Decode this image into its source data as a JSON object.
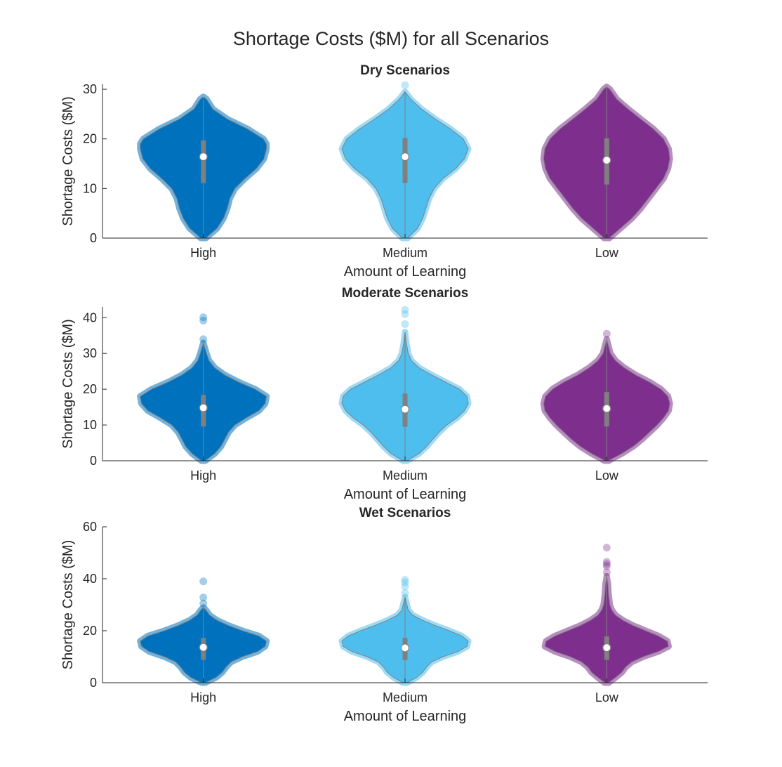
{
  "figure": {
    "title": "Shortage Costs ($M) for all Scenarios"
  },
  "colors": {
    "High": "#0072bd",
    "Medium": "#4dbeee",
    "Low": "#7e2f8e",
    "axis": "#262626",
    "inner": "#808080"
  },
  "chart_data": [
    {
      "type": "violin",
      "title": "Dry Scenarios",
      "xlabel": "Amount of Learning",
      "ylabel": "Shortage Costs ($M)",
      "ylim": [
        0,
        31
      ],
      "yticks": [
        0,
        10,
        20,
        30
      ],
      "categories": [
        "High",
        "Medium",
        "Low"
      ],
      "groups": [
        {
          "name": "High",
          "median": 16.4,
          "q1": 11.1,
          "q3": 19.7,
          "min": 0,
          "max": 28.5,
          "profile": [
            [
              0,
              0.04
            ],
            [
              2,
              0.22
            ],
            [
              4,
              0.32
            ],
            [
              6,
              0.38
            ],
            [
              8,
              0.42
            ],
            [
              10,
              0.5
            ],
            [
              12,
              0.66
            ],
            [
              14,
              0.84
            ],
            [
              16,
              0.96
            ],
            [
              18,
              1.0
            ],
            [
              19,
              1.0
            ],
            [
              20,
              0.95
            ],
            [
              22,
              0.7
            ],
            [
              24,
              0.38
            ],
            [
              26,
              0.15
            ],
            [
              28,
              0.05
            ],
            [
              28.5,
              0
            ]
          ],
          "outliers": []
        },
        {
          "name": "Medium",
          "median": 16.4,
          "q1": 11.1,
          "q3": 20.2,
          "min": 0,
          "max": 29.5,
          "profile": [
            [
              0,
              0.04
            ],
            [
              2,
              0.2
            ],
            [
              4,
              0.28
            ],
            [
              6,
              0.33
            ],
            [
              8,
              0.38
            ],
            [
              10,
              0.46
            ],
            [
              12,
              0.6
            ],
            [
              14,
              0.8
            ],
            [
              16,
              0.94
            ],
            [
              18,
              1.0
            ],
            [
              20,
              0.92
            ],
            [
              22,
              0.72
            ],
            [
              24,
              0.48
            ],
            [
              26,
              0.26
            ],
            [
              28,
              0.09
            ],
            [
              29.5,
              0
            ]
          ],
          "outliers": [
            30.8
          ]
        },
        {
          "name": "Low",
          "median": 15.7,
          "q1": 10.8,
          "q3": 20.1,
          "min": 0,
          "max": 30.5,
          "profile": [
            [
              0,
              0.04
            ],
            [
              2,
              0.22
            ],
            [
              4,
              0.4
            ],
            [
              6,
              0.54
            ],
            [
              8,
              0.66
            ],
            [
              10,
              0.78
            ],
            [
              12,
              0.9
            ],
            [
              14,
              0.97
            ],
            [
              16,
              1.0
            ],
            [
              18,
              0.98
            ],
            [
              20,
              0.9
            ],
            [
              22,
              0.74
            ],
            [
              24,
              0.54
            ],
            [
              26,
              0.34
            ],
            [
              28,
              0.16
            ],
            [
              30,
              0.05
            ],
            [
              30.5,
              0
            ]
          ],
          "outliers": []
        }
      ]
    },
    {
      "type": "violin",
      "title": "Moderate Scenarios",
      "xlabel": "Amount of Learning",
      "ylabel": "Shortage Costs ($M)",
      "ylim": [
        0,
        43
      ],
      "yticks": [
        0,
        10,
        20,
        30,
        40
      ],
      "categories": [
        "High",
        "Medium",
        "Low"
      ],
      "groups": [
        {
          "name": "High",
          "median": 14.8,
          "q1": 9.6,
          "q3": 18.4,
          "min": 0,
          "max": 33,
          "profile": [
            [
              0,
              0.03
            ],
            [
              2,
              0.18
            ],
            [
              4,
              0.28
            ],
            [
              6,
              0.34
            ],
            [
              8,
              0.4
            ],
            [
              10,
              0.5
            ],
            [
              12,
              0.68
            ],
            [
              14,
              0.88
            ],
            [
              16,
              0.98
            ],
            [
              18,
              1.0
            ],
            [
              20,
              0.82
            ],
            [
              22,
              0.56
            ],
            [
              24,
              0.34
            ],
            [
              26,
              0.18
            ],
            [
              28,
              0.09
            ],
            [
              30,
              0.05
            ],
            [
              33,
              0
            ]
          ],
          "outliers": [
            34,
            39.2,
            40.1
          ]
        },
        {
          "name": "Medium",
          "median": 14.4,
          "q1": 9.5,
          "q3": 18.8,
          "min": 0,
          "max": 36,
          "profile": [
            [
              0,
              0.03
            ],
            [
              2,
              0.22
            ],
            [
              4,
              0.34
            ],
            [
              6,
              0.44
            ],
            [
              8,
              0.54
            ],
            [
              10,
              0.66
            ],
            [
              12,
              0.82
            ],
            [
              14,
              0.94
            ],
            [
              16,
              1.0
            ],
            [
              18,
              0.98
            ],
            [
              20,
              0.86
            ],
            [
              22,
              0.64
            ],
            [
              24,
              0.42
            ],
            [
              26,
              0.22
            ],
            [
              28,
              0.1
            ],
            [
              30,
              0.05
            ],
            [
              33,
              0.02
            ],
            [
              36,
              0
            ]
          ],
          "outliers": [
            38.2,
            41,
            42.2
          ]
        },
        {
          "name": "Low",
          "median": 14.6,
          "q1": 9.6,
          "q3": 19.2,
          "min": 0,
          "max": 34,
          "profile": [
            [
              0,
              0.03
            ],
            [
              2,
              0.24
            ],
            [
              4,
              0.42
            ],
            [
              6,
              0.56
            ],
            [
              8,
              0.68
            ],
            [
              10,
              0.8
            ],
            [
              12,
              0.9
            ],
            [
              14,
              0.98
            ],
            [
              16,
              1.0
            ],
            [
              18,
              0.97
            ],
            [
              20,
              0.86
            ],
            [
              22,
              0.68
            ],
            [
              24,
              0.46
            ],
            [
              26,
              0.28
            ],
            [
              28,
              0.14
            ],
            [
              30,
              0.06
            ],
            [
              32,
              0.03
            ],
            [
              34,
              0
            ]
          ],
          "outliers": [
            35.5
          ]
        }
      ]
    },
    {
      "type": "violin",
      "title": "Wet Scenarios",
      "xlabel": "Amount of Learning",
      "ylabel": "Shortage Costs ($M)",
      "ylim": [
        0,
        60
      ],
      "yticks": [
        0,
        20,
        40,
        60
      ],
      "categories": [
        "High",
        "Medium",
        "Low"
      ],
      "groups": [
        {
          "name": "High",
          "median": 13.6,
          "q1": 8.8,
          "q3": 17.2,
          "min": 0,
          "max": 29,
          "profile": [
            [
              0,
              0.03
            ],
            [
              2,
              0.2
            ],
            [
              4,
              0.3
            ],
            [
              6,
              0.36
            ],
            [
              8,
              0.44
            ],
            [
              10,
              0.62
            ],
            [
              12,
              0.86
            ],
            [
              14,
              0.98
            ],
            [
              16,
              1.0
            ],
            [
              18,
              0.88
            ],
            [
              20,
              0.62
            ],
            [
              22,
              0.4
            ],
            [
              24,
              0.22
            ],
            [
              26,
              0.1
            ],
            [
              28,
              0.04
            ],
            [
              29,
              0
            ]
          ],
          "outliers": [
            30.5,
            32.8,
            39
          ]
        },
        {
          "name": "Medium",
          "median": 13.4,
          "q1": 8.7,
          "q3": 17.3,
          "min": 0,
          "max": 33,
          "profile": [
            [
              0,
              0.03
            ],
            [
              2,
              0.18
            ],
            [
              4,
              0.28
            ],
            [
              6,
              0.34
            ],
            [
              8,
              0.42
            ],
            [
              10,
              0.6
            ],
            [
              12,
              0.84
            ],
            [
              14,
              0.98
            ],
            [
              16,
              1.0
            ],
            [
              18,
              0.9
            ],
            [
              20,
              0.7
            ],
            [
              22,
              0.48
            ],
            [
              24,
              0.28
            ],
            [
              26,
              0.12
            ],
            [
              28,
              0.05
            ],
            [
              30,
              0.03
            ],
            [
              33,
              0
            ]
          ],
          "outliers": [
            34.5,
            37,
            38.6,
            39.6
          ]
        },
        {
          "name": "Low",
          "median": 13.5,
          "q1": 8.8,
          "q3": 17.8,
          "min": 0,
          "max": 41,
          "profile": [
            [
              0,
              0.03
            ],
            [
              2,
              0.14
            ],
            [
              4,
              0.24
            ],
            [
              6,
              0.3
            ],
            [
              8,
              0.4
            ],
            [
              10,
              0.58
            ],
            [
              12,
              0.82
            ],
            [
              14,
              0.98
            ],
            [
              16,
              0.96
            ],
            [
              18,
              0.82
            ],
            [
              20,
              0.62
            ],
            [
              22,
              0.42
            ],
            [
              24,
              0.26
            ],
            [
              26,
              0.14
            ],
            [
              28,
              0.08
            ],
            [
              30,
              0.05
            ],
            [
              34,
              0.03
            ],
            [
              38,
              0.02
            ],
            [
              41,
              0
            ]
          ],
          "outliers": [
            42.5,
            44.8,
            45.6,
            46.5,
            52
          ]
        }
      ]
    }
  ]
}
